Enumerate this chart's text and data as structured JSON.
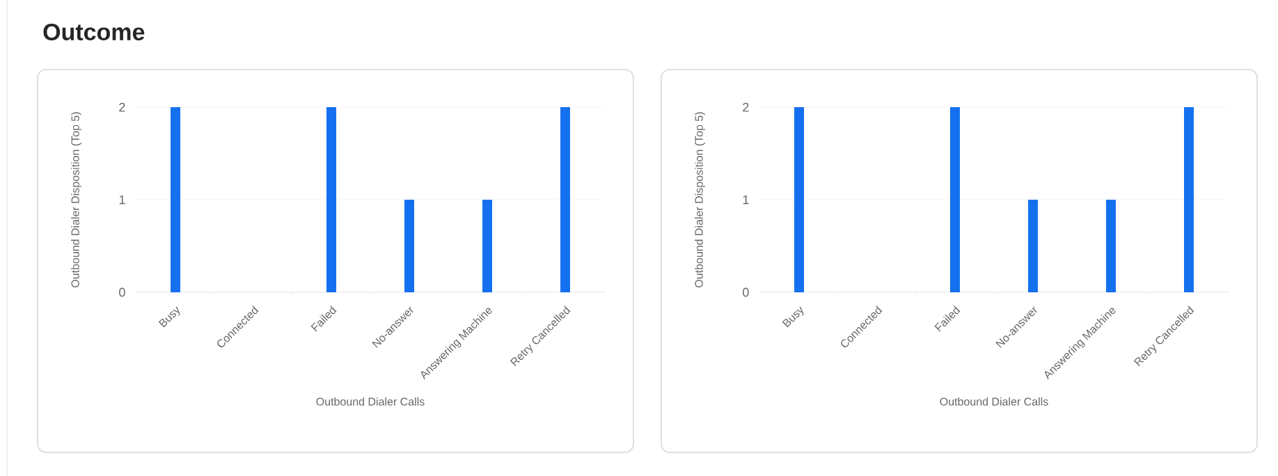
{
  "chart_data": [
    {
      "type": "bar",
      "title": "Outcome",
      "categories": [
        "Busy",
        "Connected",
        "Failed",
        "No-answer",
        "Answering Machine",
        "Retry Cancelled"
      ],
      "values": [
        2,
        0,
        2,
        1,
        1,
        2
      ],
      "color": "#1570ef",
      "ylim": [
        0,
        2
      ],
      "yticks": [
        0,
        1,
        2
      ],
      "grid": "y",
      "xlabel": "Outbound Dialer Calls",
      "ylabel": "Outbound Dialer Disposition (Top 5)"
    },
    {
      "type": "bar",
      "categories": [
        "Busy",
        "Connected",
        "Failed",
        "No-answer",
        "Answering Machine",
        "Retry Cancelled"
      ],
      "values": [
        2,
        0,
        2,
        1,
        1,
        2
      ],
      "color": "#1570ef",
      "ylim": [
        0,
        2
      ],
      "yticks": [
        0,
        1,
        2
      ],
      "grid": "y",
      "xlabel": "Outbound Dialer Calls",
      "ylabel": "Outbound Dialer Disposition (Top 5)"
    }
  ]
}
